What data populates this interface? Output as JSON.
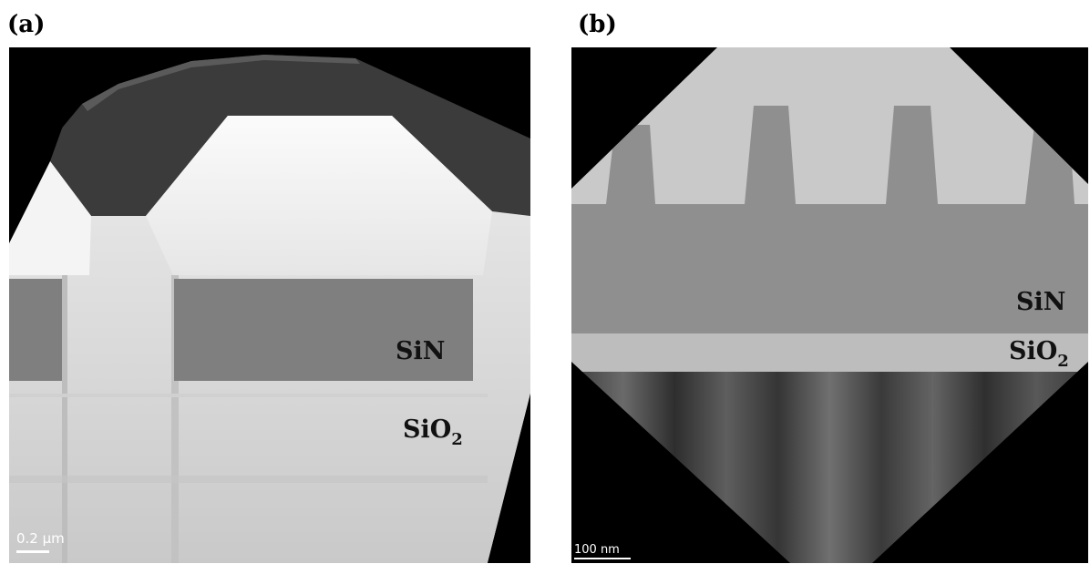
{
  "panel_a": {
    "tag": "(a)",
    "layer_sin": "SiN",
    "layer_sio2_main": "SiO",
    "layer_sio2_sub": "2",
    "scale_label": "0.2 µm"
  },
  "panel_b": {
    "tag": "(b)",
    "layer_sin": "SiN",
    "layer_sio2_main": "SiO",
    "layer_sio2_sub": "2",
    "scale_label": "100 nm"
  },
  "colors": {
    "background": "#000000",
    "sio2_a": "#d9d9d9",
    "sin_a": "#7f7f7f",
    "coating_a": "#f2f2f2",
    "cap_a": "#3b3b3b",
    "sin_b": "#8f8f8f",
    "coating_b": "#c9c9c9",
    "sio2_b": "#bdbdbd",
    "substrate_b": "#4a4a4a"
  }
}
